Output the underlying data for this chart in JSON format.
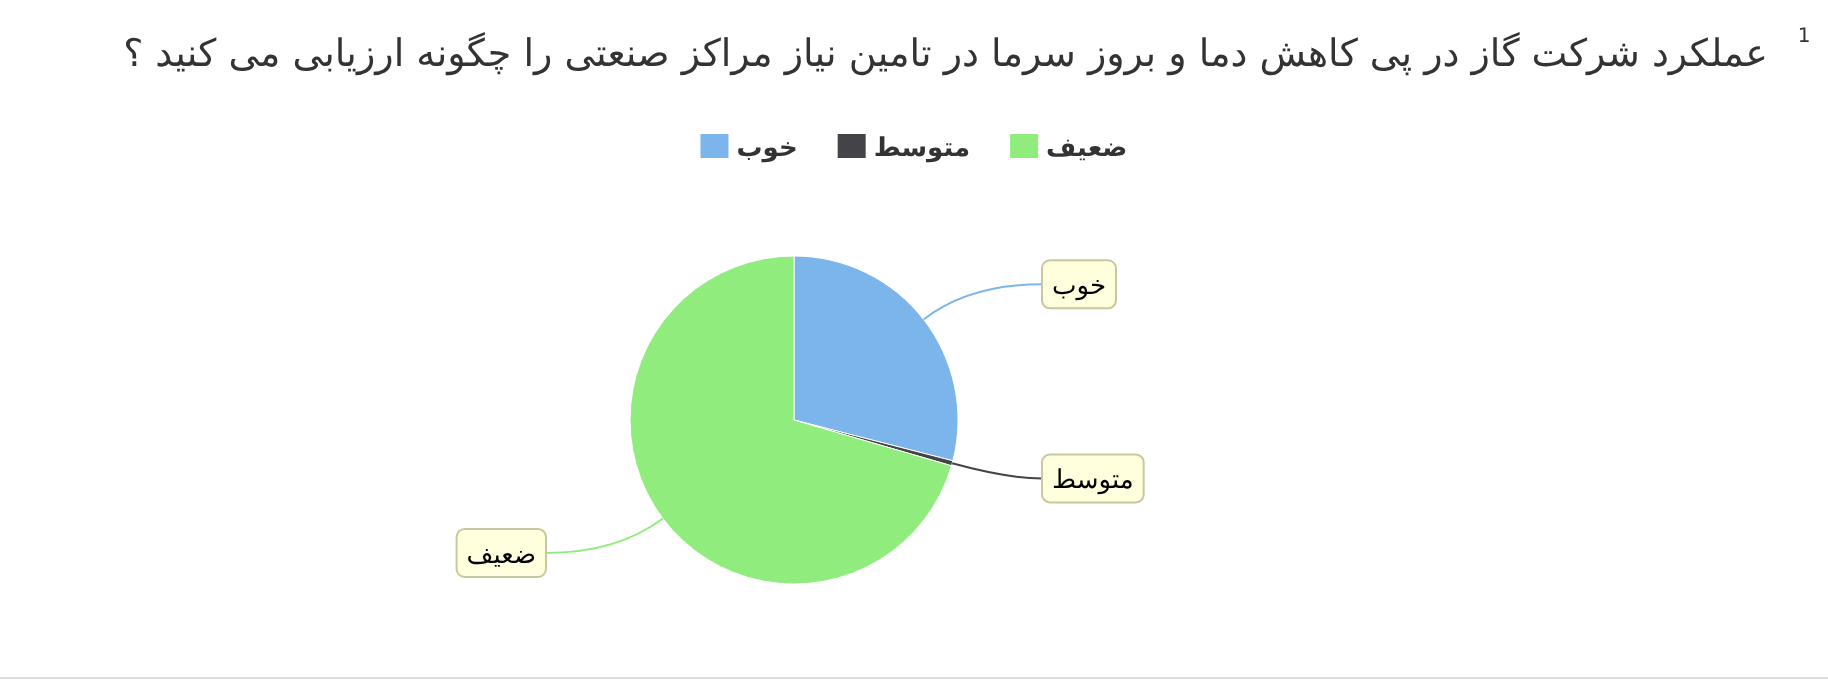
{
  "chart_data": {
    "type": "pie",
    "title": "عملکرد شرکت گاز در پی کاهش دما و بروز سرما در تامین نیاز مراکز صنعتی را چگونه ارزیابی می کنید ؟",
    "annotations": [
      "1"
    ],
    "categories": [
      "خوب",
      "متوسط",
      "ضعیف"
    ],
    "values": [
      29,
      0.5,
      70.5
    ],
    "colors": [
      "#7cb5ec",
      "#434348",
      "#90ed7d"
    ],
    "legend": "top",
    "data_labels": false
  }
}
